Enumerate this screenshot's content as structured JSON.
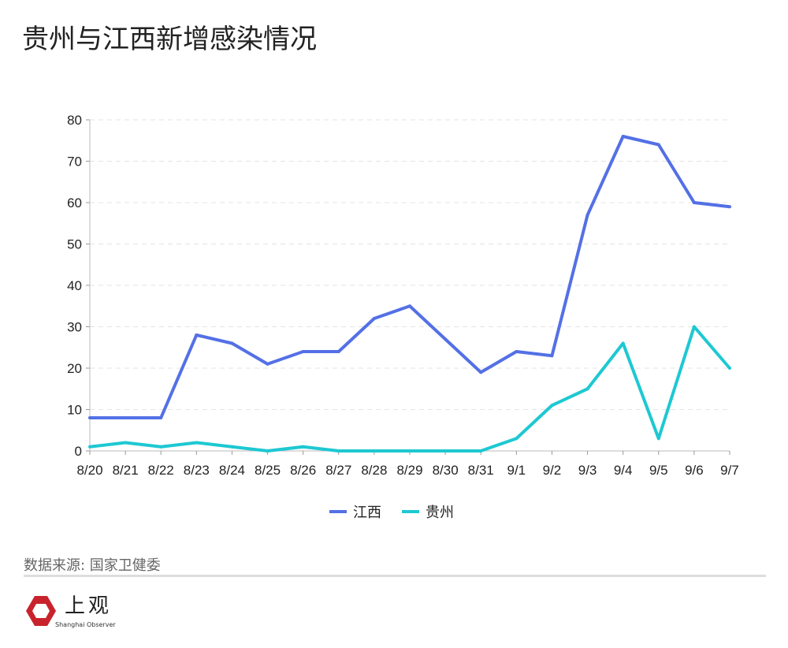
{
  "title": "贵州与江西新增感染情况",
  "source": "数据来源: 国家卫健委",
  "logo": {
    "cn": "上观",
    "en": "Shanghai Observer"
  },
  "chart_data": {
    "type": "line",
    "title": "贵州与江西新增感染情况",
    "xlabel": "",
    "ylabel": "",
    "ylim": [
      0,
      80
    ],
    "yticks": [
      0,
      10,
      20,
      30,
      40,
      50,
      60,
      70,
      80
    ],
    "grid": true,
    "legend": "bottom",
    "categories": [
      "8/20",
      "8/21",
      "8/22",
      "8/23",
      "8/24",
      "8/25",
      "8/26",
      "8/27",
      "8/28",
      "8/29",
      "8/30",
      "8/31",
      "9/1",
      "9/2",
      "9/3",
      "9/4",
      "9/5",
      "9/6",
      "9/7"
    ],
    "series": [
      {
        "name": "江西",
        "color": "#5470e6",
        "values": [
          8,
          8,
          8,
          28,
          26,
          21,
          24,
          24,
          32,
          35,
          27,
          19,
          24,
          23,
          57,
          76,
          74,
          60,
          59
        ]
      },
      {
        "name": "贵州",
        "color": "#1ec8d2",
        "values": [
          1,
          2,
          1,
          2,
          1,
          0,
          1,
          0,
          0,
          0,
          0,
          0,
          3,
          11,
          15,
          26,
          3,
          30,
          20
        ]
      }
    ]
  }
}
